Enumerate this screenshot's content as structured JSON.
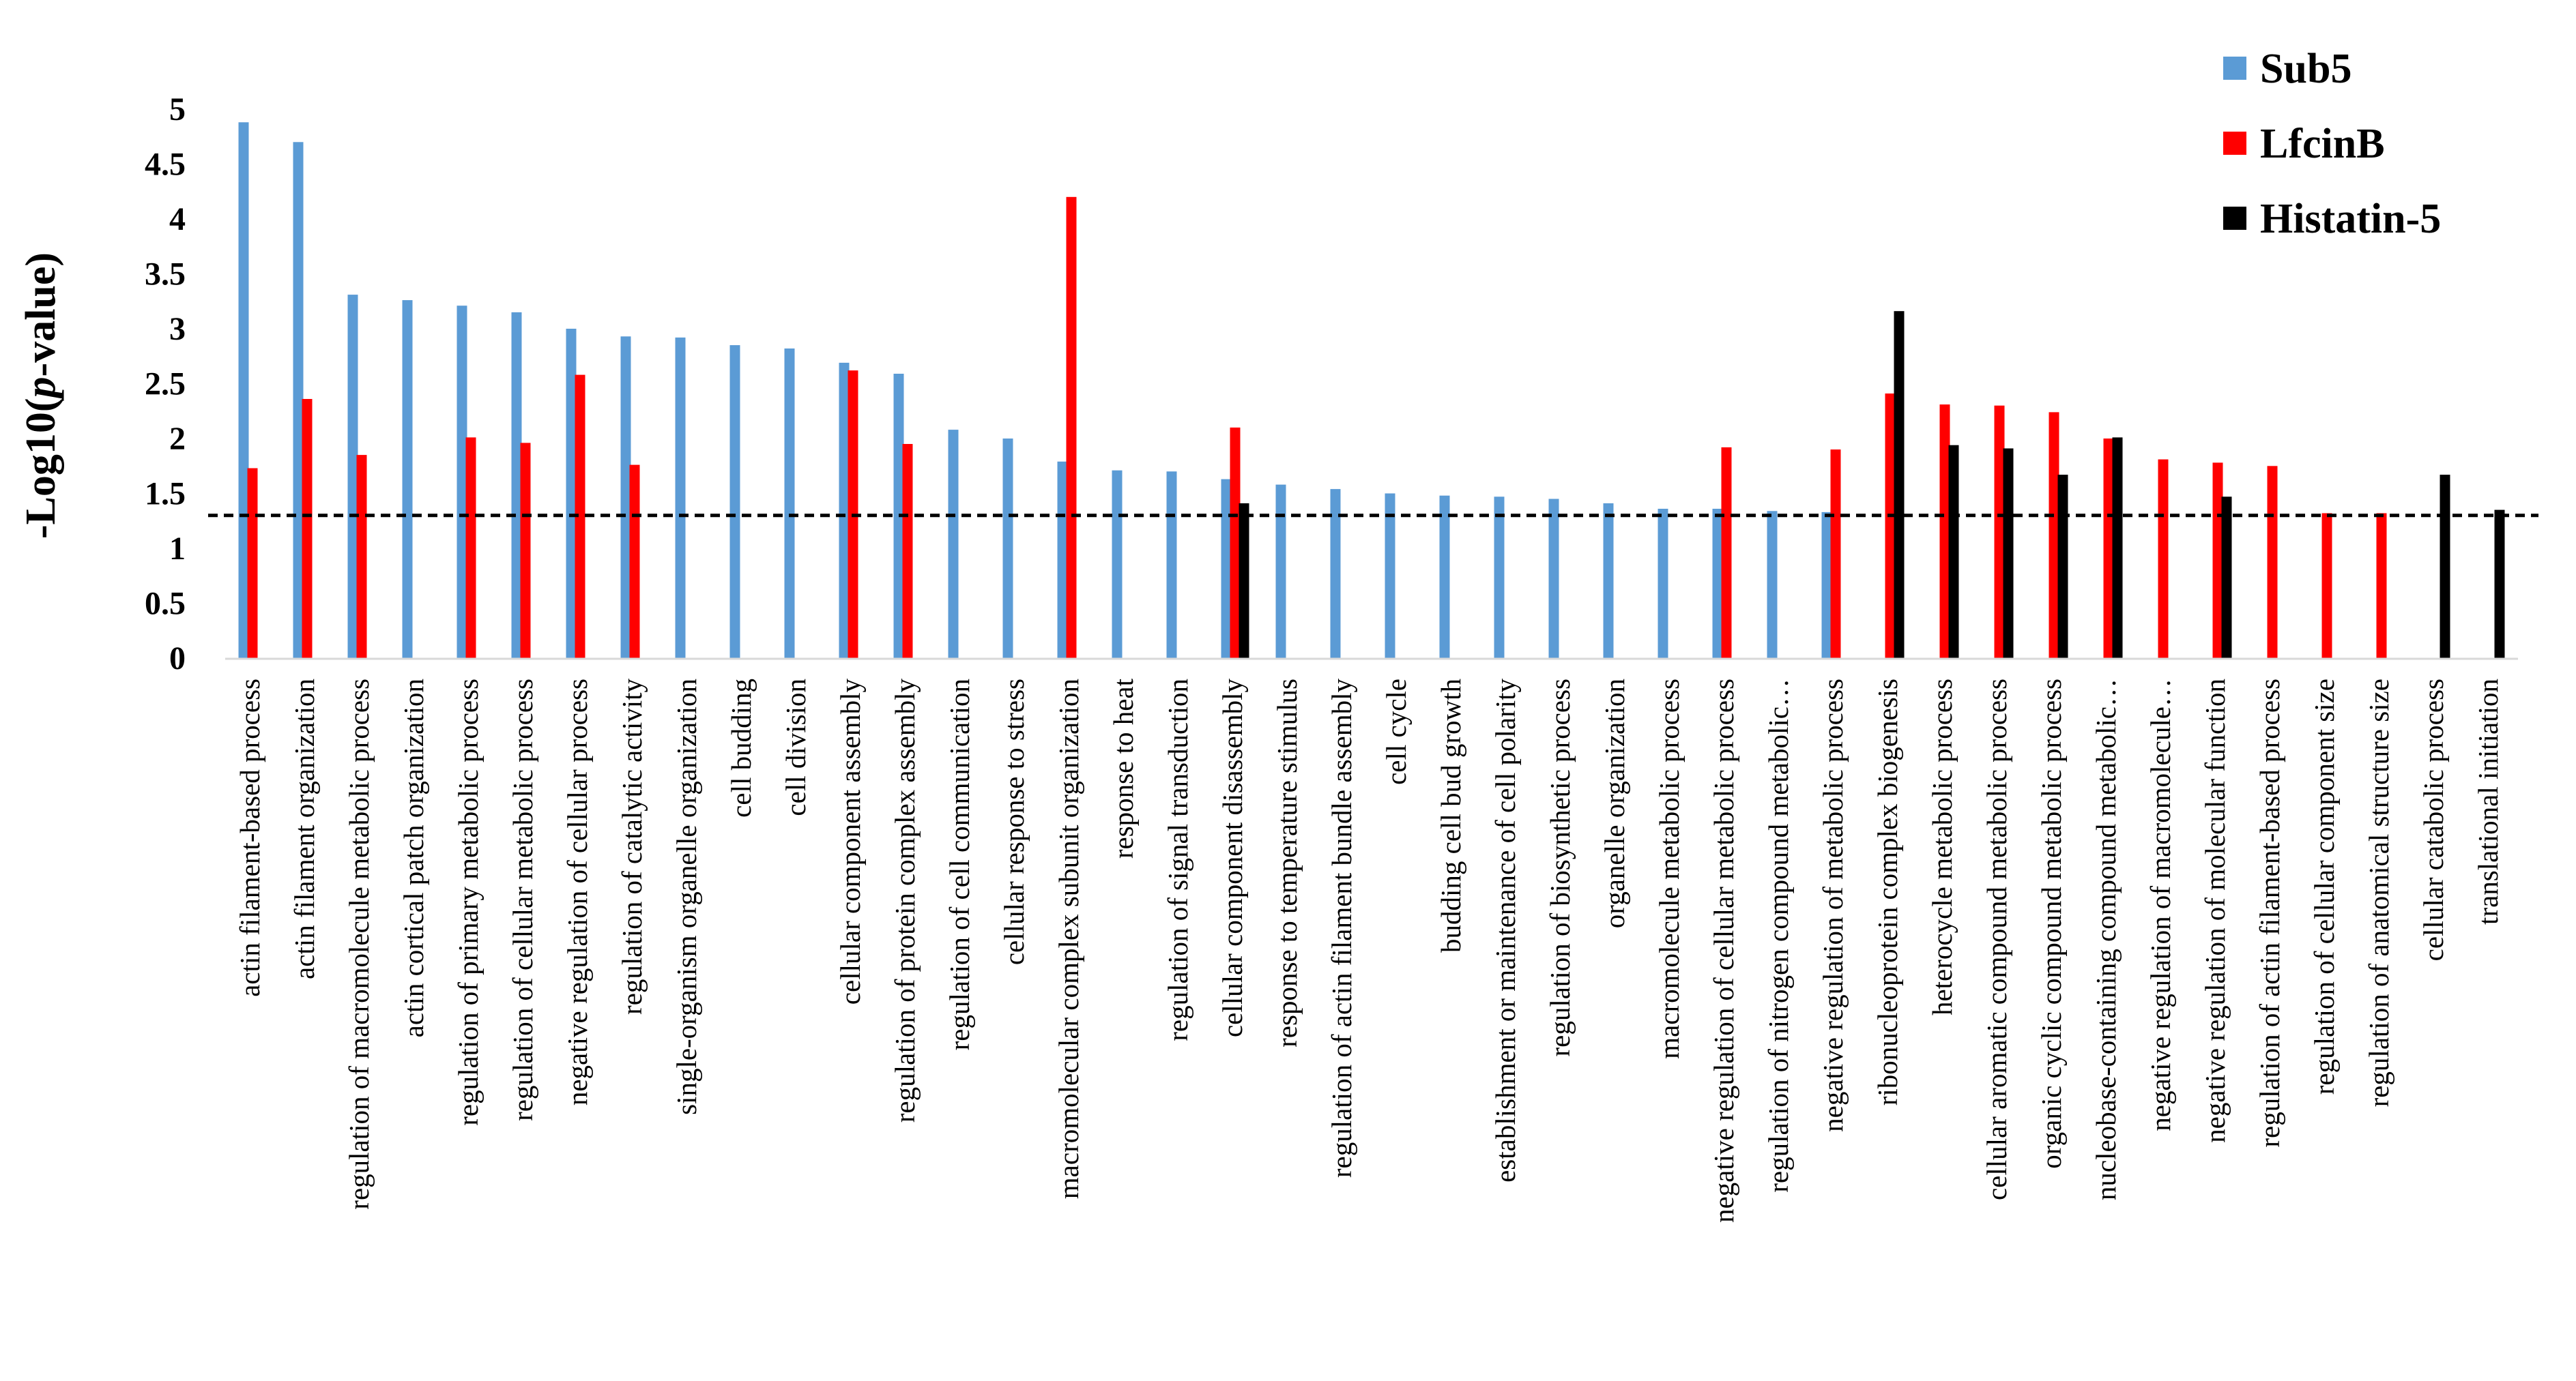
{
  "chart_data": {
    "type": "bar",
    "title": "",
    "xlabel": "",
    "ylabel": "-Log10(p-value)",
    "ylabel_parts": {
      "prefix": "-Log10(",
      "italic": "p",
      "suffix": "-value)"
    },
    "ylim": [
      0,
      5
    ],
    "yticks": [
      "0",
      "0.5",
      "1",
      "1.5",
      "2",
      "2.5",
      "3",
      "3.5",
      "4",
      "4.5",
      "5"
    ],
    "threshold": 1.3,
    "legend_position": "top-right",
    "categories": [
      "actin filament-based process",
      "actin filament organization",
      "regulation of macromolecule metabolic process",
      "actin cortical patch organization",
      "regulation of primary metabolic process",
      "regulation of cellular metabolic process",
      "negative regulation of cellular process",
      "regulation of catalytic activity",
      "single-organism organelle organization",
      "cell budding",
      "cell division",
      "cellular component assembly",
      "regulation of protein complex assembly",
      "regulation of cell communication",
      "cellular response to stress",
      "macromolecular complex subunit organization",
      "response to heat",
      "regulation of signal transduction",
      "cellular component disassembly",
      "response to temperature stimulus",
      "regulation of actin filament bundle assembly",
      "cell cycle",
      "budding cell bud growth",
      "establishment or maintenance of cell polarity",
      "regulation of biosynthetic process",
      "organelle organization",
      "macromolecule metabolic process",
      "negative regulation of cellular metabolic process",
      "regulation of nitrogen compound metabolic…",
      "negative regulation of metabolic process",
      "ribonucleoprotein complex biogenesis",
      "heterocycle metabolic process",
      "cellular aromatic compound metabolic process",
      "organic cyclic compound metabolic process",
      "nucleobase-containing compound metabolic…",
      "negative regulation of macromolecule…",
      "negative regulation of molecular function",
      "regulation of actin filament-based process",
      "regulation of cellular component size",
      "regulation of anatomical structure size",
      "cellular catabolic process",
      "translational initiation"
    ],
    "series": [
      {
        "name": "Sub5",
        "color": "#5B9BD5",
        "values": [
          4.88,
          4.7,
          3.31,
          3.26,
          3.21,
          3.15,
          3.0,
          2.93,
          2.92,
          2.85,
          2.82,
          2.69,
          2.59,
          2.08,
          2.0,
          1.79,
          1.71,
          1.7,
          1.63,
          1.58,
          1.54,
          1.5,
          1.48,
          1.47,
          1.45,
          1.41,
          1.36,
          1.36,
          1.34,
          1.33,
          0,
          0,
          0,
          0,
          0,
          0,
          0,
          0,
          0,
          0,
          0,
          0
        ]
      },
      {
        "name": "LfcinB",
        "color": "#FF0000",
        "values": [
          1.73,
          2.36,
          1.85,
          0,
          2.01,
          1.96,
          2.58,
          1.76,
          0,
          0,
          0,
          2.62,
          1.95,
          0,
          0,
          4.2,
          0,
          0,
          2.1,
          0,
          0,
          0,
          0,
          0,
          0,
          0,
          0,
          1.92,
          0,
          1.9,
          2.41,
          2.31,
          2.3,
          2.24,
          2.0,
          1.81,
          1.78,
          1.75,
          1.32,
          1.32,
          0,
          0
        ]
      },
      {
        "name": "Histatin-5",
        "color": "#000000",
        "values": [
          0,
          0,
          0,
          0,
          0,
          0,
          0,
          0,
          0,
          0,
          0,
          0,
          0,
          0,
          0,
          0,
          0,
          0,
          1.41,
          0,
          0,
          0,
          0,
          0,
          0,
          0,
          0,
          0,
          0,
          0,
          3.16,
          1.94,
          1.91,
          1.67,
          2.01,
          0,
          1.47,
          0,
          0,
          0,
          1.67,
          1.35
        ]
      }
    ]
  }
}
